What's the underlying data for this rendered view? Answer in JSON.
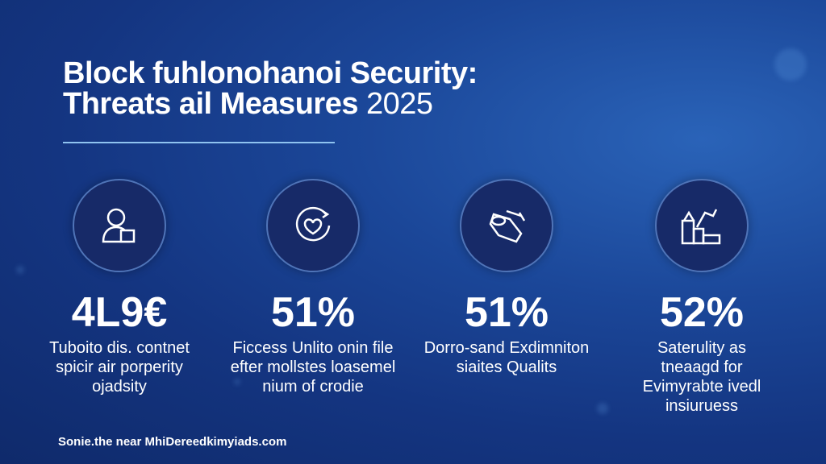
{
  "title": {
    "line1": "Block fuhlonohanoi Security:",
    "line2": "Threats ail Measures",
    "year": "2025"
  },
  "stats": [
    {
      "icon": "user-icon",
      "value": "4L9€",
      "desc": [
        "Tuboito dis. contnet",
        "spicir air porperity",
        "ojadsity"
      ]
    },
    {
      "icon": "heart-shield-icon",
      "value": "51%",
      "desc": [
        "Ficcess Unlito onin file",
        "efter mollstes loasemel",
        "nium of crodie"
      ]
    },
    {
      "icon": "card-icon",
      "value": "51%",
      "desc": [
        "Dorro-sand Exdimniton",
        "siaites Qualits"
      ]
    },
    {
      "icon": "factory-icon",
      "value": "52%",
      "desc": [
        "Saterulity as",
        "tneaagd for",
        "Evimyrabte ivedl",
        "insiuruess"
      ]
    }
  ],
  "source": "Sonie.the near MhiDereedkimyiads.com",
  "colors": {
    "background": "#143581",
    "circle": "#172a68",
    "rule": "#8fc3f0"
  }
}
